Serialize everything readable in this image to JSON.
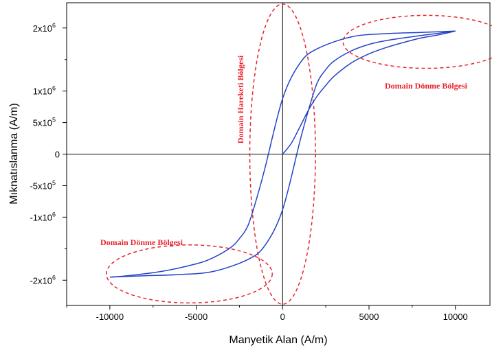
{
  "chart_data": {
    "type": "line",
    "title": "",
    "xlabel": "Manyetik Alan (A/m)",
    "ylabel": "Mıknatıslanma (A/m)",
    "xlim": [
      -12500,
      12000
    ],
    "ylim": [
      -2400000,
      2400000
    ],
    "grid": false,
    "x_ticks": [
      {
        "value": -10000,
        "label": "-10000"
      },
      {
        "value": -5000,
        "label": "-5000"
      },
      {
        "value": 0,
        "label": "0"
      },
      {
        "value": 5000,
        "label": "5000"
      },
      {
        "value": 10000,
        "label": "10000"
      }
    ],
    "y_ticks": [
      {
        "value": 2000000,
        "label": "2x10",
        "exp": "6"
      },
      {
        "value": 1500000,
        "label": "",
        "exp": ""
      },
      {
        "value": 1000000,
        "label": "1x10",
        "exp": "6"
      },
      {
        "value": 500000,
        "label": "5x10",
        "exp": "5"
      },
      {
        "value": 0,
        "label": "0",
        "exp": ""
      },
      {
        "value": -500000,
        "label": "-5x10",
        "exp": "5"
      },
      {
        "value": -1000000,
        "label": "-1x10",
        "exp": "6"
      },
      {
        "value": -1500000,
        "label": "",
        "exp": ""
      },
      {
        "value": -2000000,
        "label": "-2x10",
        "exp": "6"
      }
    ],
    "series": [
      {
        "role": "initial-magnetization",
        "color": "#2442c8",
        "x": [
          0,
          500,
          1000,
          1500,
          2000,
          2500,
          3000,
          4000,
          5000,
          6000,
          7000,
          8000,
          9000,
          10000
        ],
        "y": [
          0,
          170000,
          430000,
          700000,
          920000,
          1090000,
          1240000,
          1450000,
          1590000,
          1690000,
          1770000,
          1840000,
          1890000,
          1950000
        ]
      },
      {
        "role": "descending-branch",
        "color": "#2442c8",
        "x": [
          10000,
          8000,
          6000,
          4000,
          2000,
          1000,
          0,
          -1000,
          -1500,
          -2000,
          -2500,
          -3000,
          -4000,
          -5000,
          -7000,
          -9000,
          -10000
        ],
        "y": [
          1950000,
          1930000,
          1910000,
          1860000,
          1670000,
          1440000,
          880000,
          -200000,
          -700000,
          -1130000,
          -1340000,
          -1480000,
          -1640000,
          -1740000,
          -1860000,
          -1930000,
          -1950000
        ]
      },
      {
        "role": "ascending-branch",
        "color": "#2442c8",
        "x": [
          -10000,
          -8000,
          -6000,
          -4000,
          -2000,
          -1000,
          0,
          1000,
          1500,
          2000,
          2500,
          3000,
          4000,
          5000,
          6000,
          8000,
          10000
        ],
        "y": [
          -1950000,
          -1930000,
          -1910000,
          -1860000,
          -1670000,
          -1440000,
          -880000,
          200000,
          700000,
          1130000,
          1340000,
          1480000,
          1640000,
          1740000,
          1800000,
          1880000,
          1950000
        ]
      }
    ],
    "annotations": [
      {
        "id": "domain-rotation-top",
        "text": "Domain Dönme Bölgesi",
        "color": "#e8232a"
      },
      {
        "id": "domain-wall-motion",
        "text": "Domain Hareketi Bölgesi",
        "color": "#e8232a"
      },
      {
        "id": "domain-rotation-bottom",
        "text": "Domain Dönme Bölgesi",
        "color": "#e8232a"
      }
    ],
    "regions": [
      {
        "id": "rotation-top",
        "shape": "ellipse",
        "cx": 8300,
        "cy": 1780000,
        "rx": 4800,
        "ry": 420000
      },
      {
        "id": "wall-motion",
        "shape": "ellipse",
        "cx": 0,
        "cy": 0,
        "rx": 1900,
        "ry": 2380000
      },
      {
        "id": "rotation-bottom",
        "shape": "ellipse",
        "cx": -5400,
        "cy": -1900000,
        "rx": 4800,
        "ry": 460000
      }
    ]
  }
}
